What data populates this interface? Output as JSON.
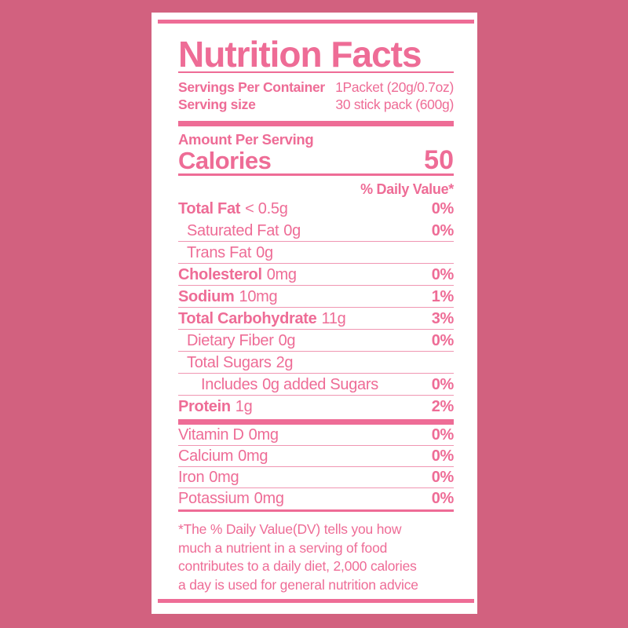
{
  "colors": {
    "background": "#d2617f",
    "accent": "#ee6c96",
    "hairline": "#f096b2",
    "card": "#ffffff"
  },
  "label": {
    "title": "Nutrition Facts",
    "serving_info": [
      {
        "label": "Servings Per Container",
        "value": "1Packet (20g/0.7oz)"
      },
      {
        "label": "Serving size",
        "value": "30 stick pack (600g)"
      }
    ],
    "amount_per_serving": "Amount Per Serving",
    "calories_label": "Calories",
    "calories_value": "50",
    "daily_value_header": "% Daily Value*",
    "nutrients": [
      {
        "name": "Total Fat",
        "amount": "< 0.5g",
        "pct": "0%"
      },
      {
        "name": "Saturated Fat",
        "amount": "0g",
        "pct": "0%"
      },
      {
        "name": "Trans Fat",
        "amount": "0g",
        "pct": ""
      },
      {
        "name": "Cholesterol",
        "amount": "0mg",
        "pct": "0%"
      },
      {
        "name": "Sodium",
        "amount": "10mg",
        "pct": "1%"
      },
      {
        "name": "Total Carbohydrate",
        "amount": "11g",
        "pct": "3%"
      },
      {
        "name": "Dietary Fiber",
        "amount": "0g",
        "pct": "0%"
      },
      {
        "name": "Total Sugars",
        "amount": "2g",
        "pct": ""
      },
      {
        "name": "Includes",
        "amount": "0g added Sugars",
        "pct": "0%"
      },
      {
        "name": "Protein",
        "amount": "1g",
        "pct": "2%"
      }
    ],
    "vitamins": [
      {
        "name": "Vitamin D",
        "amount": "0mg",
        "pct": "0%"
      },
      {
        "name": "Calcium",
        "amount": "0mg",
        "pct": "0%"
      },
      {
        "name": "Iron",
        "amount": "0mg",
        "pct": "0%"
      },
      {
        "name": "Potassium",
        "amount": "0mg",
        "pct": "0%"
      }
    ],
    "footnote": "*The % Daily Value(DV) tells you how\nmuch a nutrient in a serving of food\ncontributes to a daily diet, 2,000 calories\na day is used for general nutrition advice"
  }
}
